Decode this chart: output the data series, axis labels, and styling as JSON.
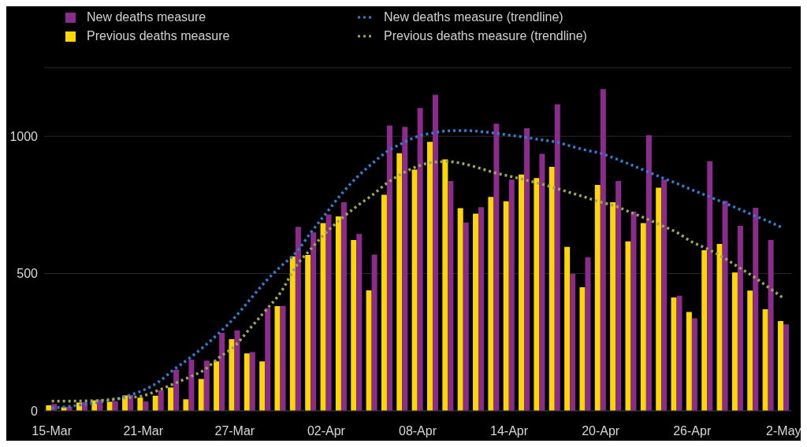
{
  "chart_data": {
    "type": "bar",
    "categories": [
      "15-Mar",
      null,
      null,
      null,
      null,
      null,
      "21-Mar",
      null,
      null,
      null,
      null,
      null,
      "27-Mar",
      null,
      null,
      null,
      null,
      null,
      "02-Apr",
      null,
      null,
      null,
      null,
      null,
      "08-Apr",
      null,
      null,
      null,
      null,
      null,
      "14-Apr",
      null,
      null,
      null,
      null,
      null,
      "20-Apr",
      null,
      null,
      null,
      null,
      null,
      "26-Apr",
      null,
      null,
      null,
      null,
      null,
      "2-May"
    ],
    "series": [
      {
        "name": "New deaths measure",
        "color": "#8b2c8c",
        "values": [
          25,
          15,
          32,
          41,
          35,
          58,
          34,
          75,
          150,
          186,
          183,
          284,
          293,
          214,
          374,
          382,
          670,
          650,
          715,
          760,
          644,
          569,
          1039,
          1034,
          1103,
          1151,
          837,
          686,
          742,
          1046,
          842,
          1029,
          936,
          1117,
          499,
          559,
          1172,
          837,
          726,
          1004,
          842,
          419,
          337,
          909,
          765,
          674,
          740,
          622,
          315
        ]
      },
      {
        "name": "Previous deaths measure",
        "color": "#ffd700",
        "values": [
          20,
          13,
          30,
          38,
          33,
          56,
          48,
          55,
          85,
          42,
          116,
          180,
          261,
          209,
          180,
          381,
          563,
          568,
          684,
          708,
          622,
          439,
          787,
          938,
          879,
          980,
          916,
          738,
          718,
          779,
          763,
          861,
          848,
          889,
          597,
          450,
          823,
          760,
          617,
          684,
          813,
          413,
          360,
          585,
          608,
          504,
          438,
          370,
          327
        ]
      },
      {
        "name": "New deaths measure (trendline)",
        "type": "line",
        "color": "#2f7fd0",
        "line_style": "dotted",
        "values": [
          10,
          15,
          22,
          30,
          40,
          55,
          75,
          105,
          150,
          190,
          235,
          285,
          340,
          405,
          470,
          525,
          575,
          650,
          720,
          790,
          850,
          900,
          945,
          975,
          1000,
          1012,
          1020,
          1021,
          1018,
          1012,
          1004,
          997,
          988,
          980,
          965,
          950,
          938,
          918,
          896,
          873,
          850,
          828,
          805,
          783,
          760,
          737,
          713,
          690,
          665
        ]
      },
      {
        "name": "Previous deaths measure (trendline)",
        "type": "line",
        "color": "#9aa85a",
        "line_style": "dotted",
        "values": [
          35,
          35,
          36,
          37,
          42,
          48,
          55,
          75,
          98,
          122,
          149,
          195,
          236,
          300,
          364,
          430,
          525,
          590,
          650,
          700,
          745,
          785,
          830,
          865,
          891,
          905,
          908,
          900,
          885,
          868,
          855,
          842,
          828,
          812,
          795,
          778,
          760,
          745,
          722,
          700,
          675,
          650,
          615,
          590,
          560,
          525,
          490,
          450,
          410
        ]
      }
    ],
    "ylim": [
      0,
      1250
    ],
    "yticks": [
      0,
      500,
      1000
    ],
    "grid": "y",
    "legend": "top"
  }
}
